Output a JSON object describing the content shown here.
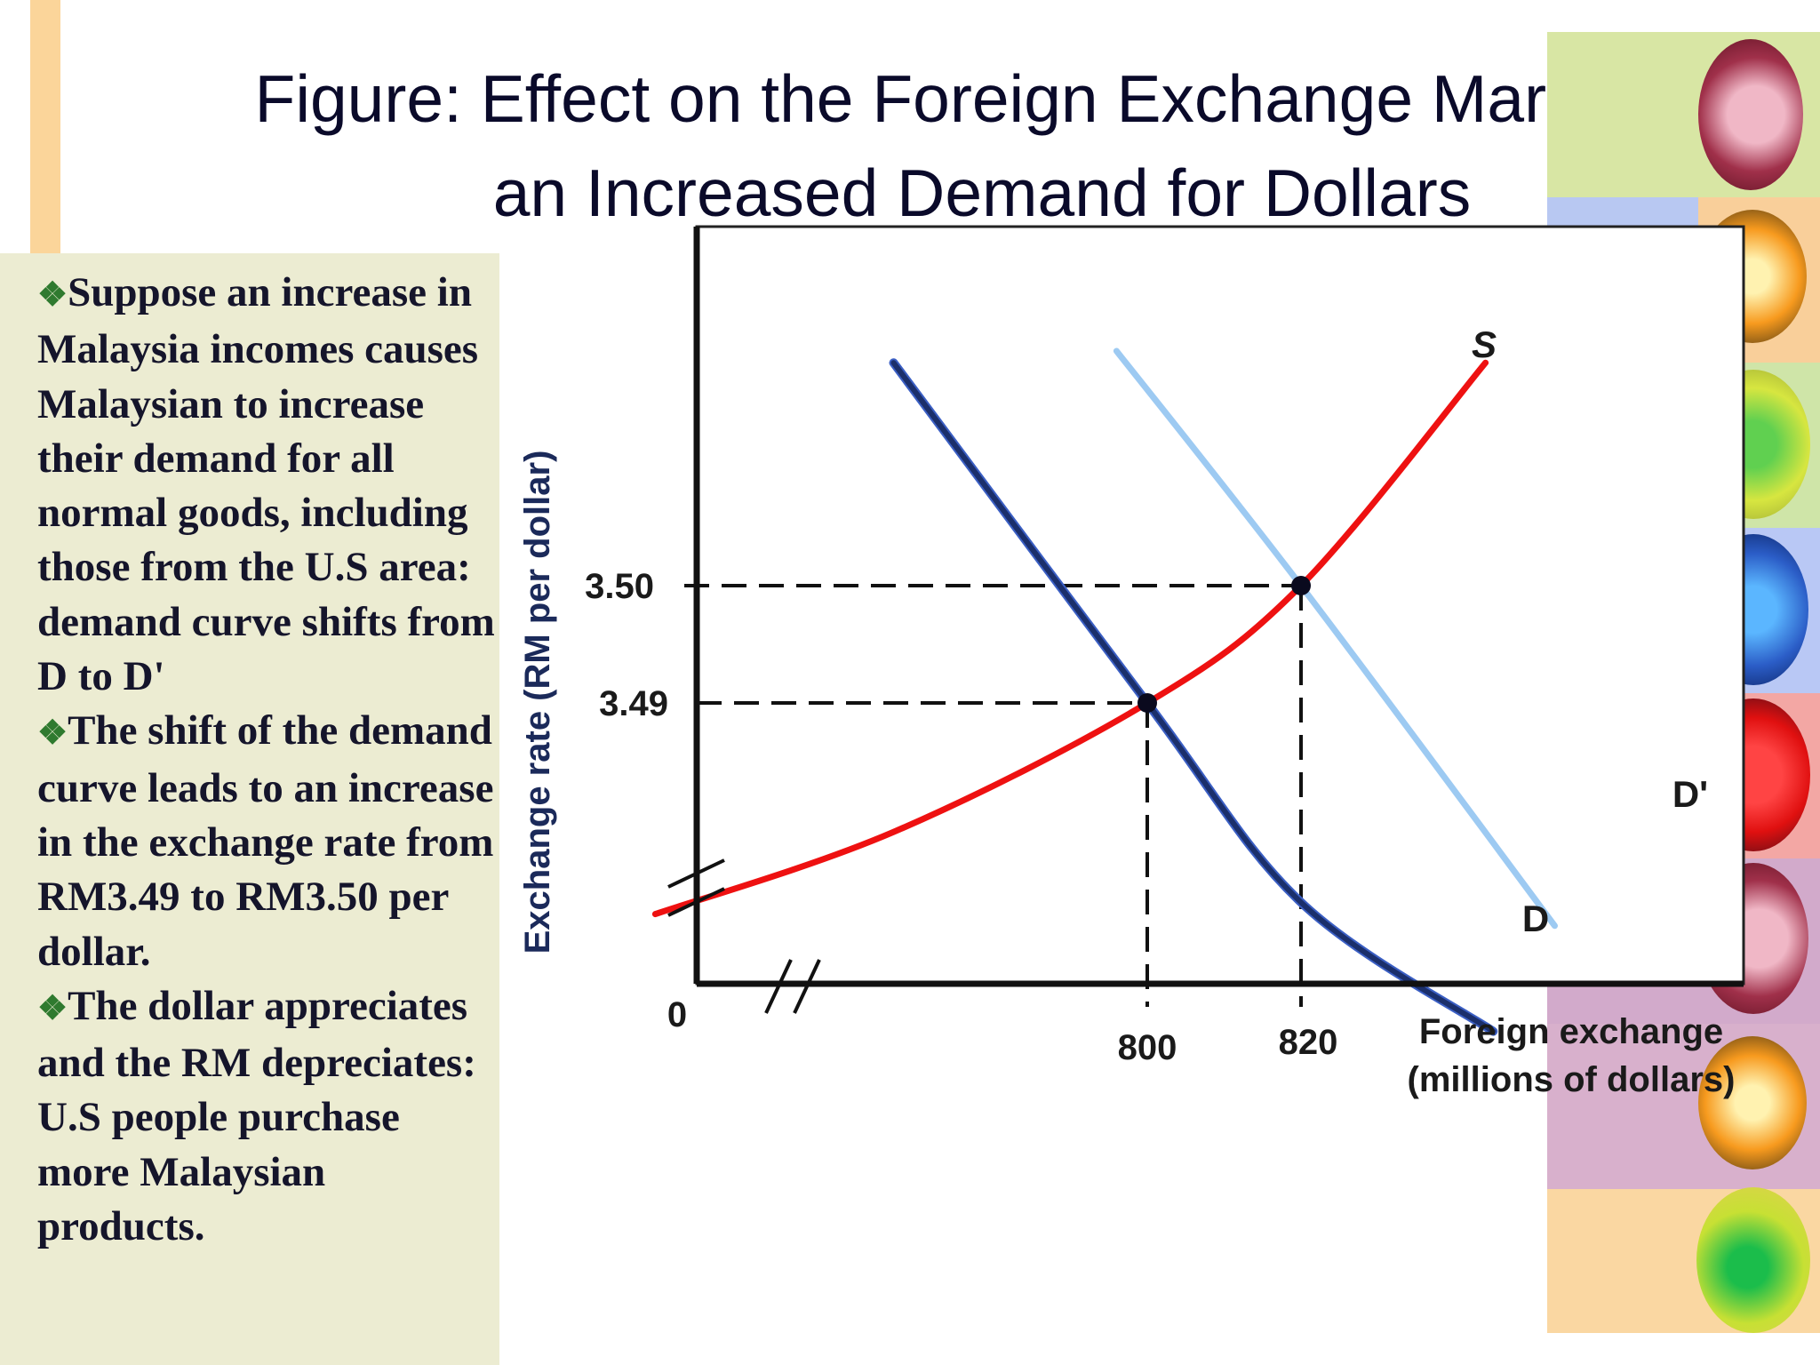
{
  "slide": {
    "title_lines": [
      "Figure: Effect on the Foreign Exchange Market of",
      "an Increased Demand for Dollars"
    ],
    "bullets": [
      "Suppose an increase in Malaysia incomes causes Malaysian to increase their demand for all normal goods, including those from the U.S area: demand curve shifts from D to D'",
      "The shift of the demand curve leads to an increase in the exchange rate from RM3.49 to RM3.50 per dollar.",
      "The dollar appreciates and the RM depreciates: U.S people purchase more Malaysian products."
    ],
    "bullet_glyph": "❖",
    "colors": {
      "text_box_bg": "#ececd2",
      "accent_stripe": "#fbd59a",
      "bullet_glyph": "#2f7a2f"
    },
    "decor_icons": [
      "apple-slice-icon",
      "orange-slice-icon",
      "fruit-scan-icon"
    ]
  },
  "chart_data": {
    "type": "line",
    "title": "",
    "xlabel_lines": [
      "Foreign exchange",
      "(millions of dollars)"
    ],
    "ylabel": "Exchange rate (RM per dollar)",
    "origin_label": "0",
    "x_ticks": [
      "800",
      "820"
    ],
    "y_ticks": [
      "3.50",
      "3.49"
    ],
    "axis_breaks": [
      "x",
      "y"
    ],
    "series": [
      {
        "name": "S",
        "color": "#ee1111",
        "points": [
          [
            736,
            3.472
          ],
          [
            767,
            3.479
          ],
          [
            800,
            3.49
          ],
          [
            820,
            3.5
          ],
          [
            844,
            3.519
          ]
        ]
      },
      {
        "name": "D",
        "color": "#1b2f6b",
        "points": [
          [
            767,
            3.519
          ],
          [
            800,
            3.49
          ],
          [
            820,
            3.473
          ],
          [
            845,
            3.462
          ]
        ]
      },
      {
        "name": "D'",
        "color": "#9dcaf2",
        "points": [
          [
            796,
            3.52
          ],
          [
            820,
            3.5
          ],
          [
            853,
            3.471
          ]
        ]
      }
    ],
    "equilibria": [
      {
        "x": 800,
        "y": 3.49
      },
      {
        "x": 820,
        "y": 3.5
      }
    ],
    "grid": false
  }
}
